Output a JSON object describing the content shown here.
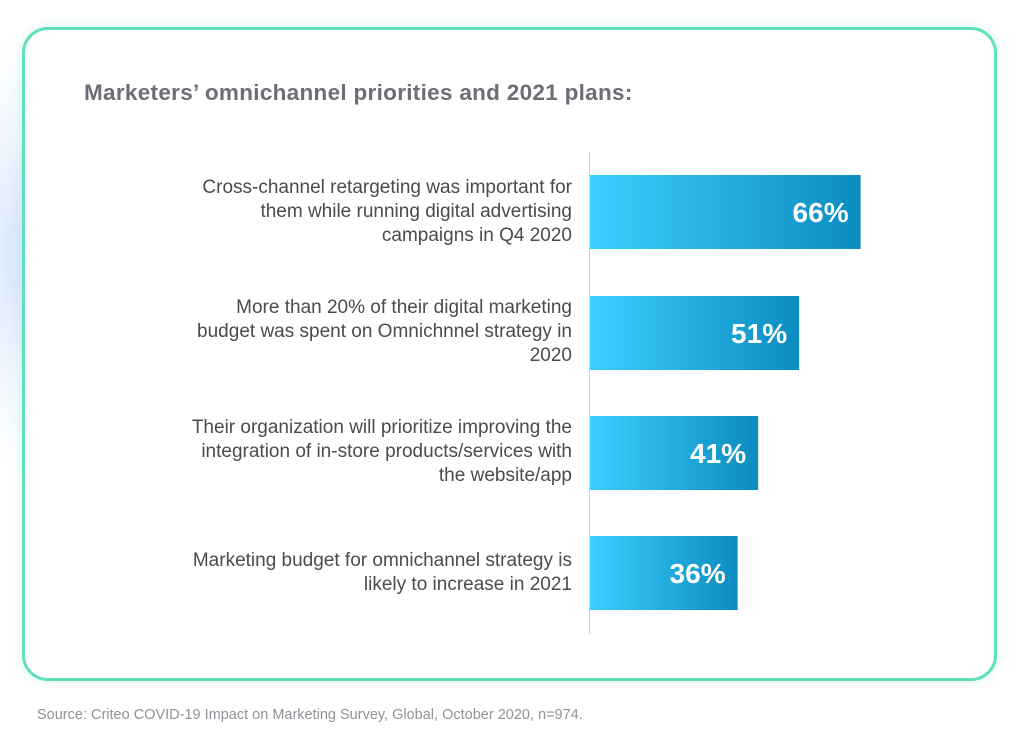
{
  "colors": {
    "card_border": "#5fe0bd",
    "bar_gradient_start": "#3ccfff",
    "bar_gradient_end": "#0b8cc0",
    "title_text": "#6b6e75",
    "label_text": "#4b4b4b",
    "value_text": "#ffffff",
    "source_text": "#8f9398"
  },
  "chart_data": {
    "type": "bar",
    "orientation": "horizontal",
    "title": "Marketers’ omnichannel priorities and 2021 plans:",
    "xlim": [
      0,
      100
    ],
    "grid": false,
    "legend": "none",
    "categories": [
      "Cross-channel retargeting was important for\nthem while running digital advertising\ncampaigns in Q4 2020",
      "More than 20% of their digital marketing\nbudget was spent on Omnichnnel strategy in\n2020",
      "Their organization will prioritize improving the\nintegration of in-store products/services with\nthe website/app",
      "Marketing budget for omnichannel strategy is\nlikely to increase in 2021"
    ],
    "values": [
      66,
      51,
      41,
      36
    ],
    "value_labels": [
      "66%",
      "51%",
      "41%",
      "36%"
    ]
  },
  "source": "Source: Criteo COVID-19 Impact on Marketing Survey, Global, October 2020, n=974."
}
